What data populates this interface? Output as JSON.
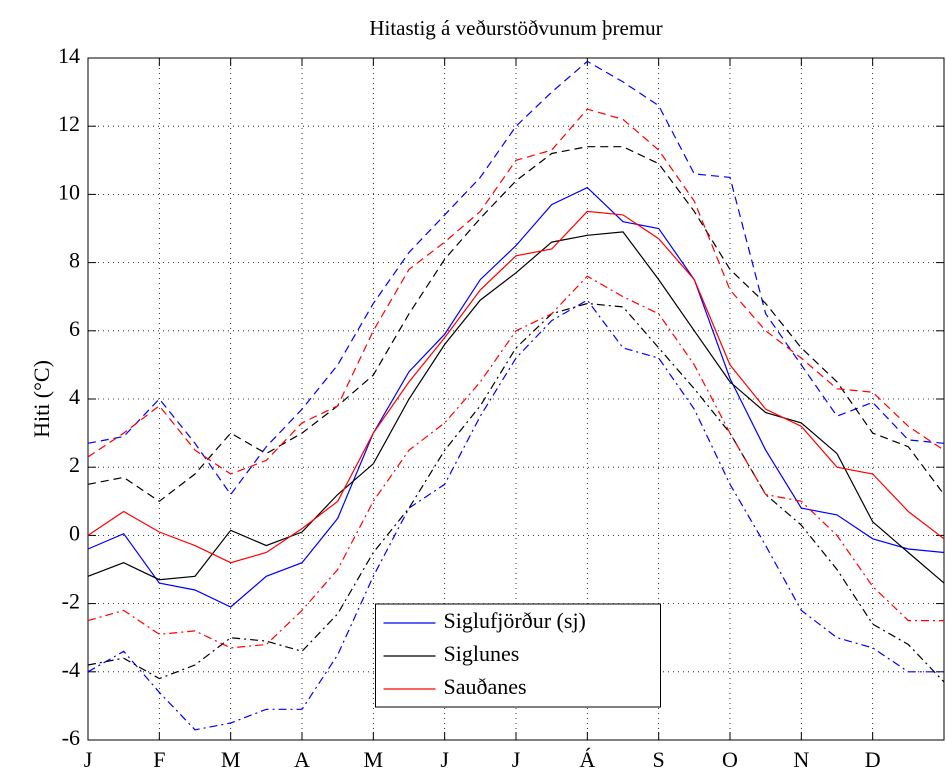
{
  "chart_data": {
    "type": "line",
    "title": "Hitastig á veðurstöðvunum þremur",
    "ylabel": "Hiti (°C)",
    "x": [
      0,
      0.5,
      1,
      1.5,
      2,
      2.5,
      3,
      3.5,
      4,
      4.5,
      5,
      5.5,
      6,
      6.5,
      7,
      7.5,
      8,
      8.5,
      9,
      9.5,
      10,
      10.5,
      11,
      11.5,
      12
    ],
    "xlim": [
      0,
      12
    ],
    "xticks": [
      {
        "value": 0,
        "label": "J"
      },
      {
        "value": 1,
        "label": "F"
      },
      {
        "value": 2,
        "label": "M"
      },
      {
        "value": 3,
        "label": "A"
      },
      {
        "value": 4,
        "label": "M"
      },
      {
        "value": 5,
        "label": "J"
      },
      {
        "value": 6,
        "label": "J"
      },
      {
        "value": 7,
        "label": "Á"
      },
      {
        "value": 8,
        "label": "S"
      },
      {
        "value": 9,
        "label": "O"
      },
      {
        "value": 10,
        "label": "N"
      },
      {
        "value": 11,
        "label": "D"
      }
    ],
    "ylim": [
      -6,
      14
    ],
    "yticks": [
      -6,
      -4,
      -2,
      0,
      2,
      4,
      6,
      8,
      10,
      12,
      14
    ],
    "grid": true,
    "legend_loc": "lower center",
    "series": [
      {
        "name": "Siglufjörður (sj)",
        "color": "#0000ff",
        "dash": "solid",
        "values": [
          -0.4,
          0.05,
          -1.4,
          -1.6,
          -2.1,
          -1.2,
          -0.8,
          0.5,
          3.0,
          4.8,
          5.9,
          7.5,
          8.5,
          9.7,
          10.2,
          9.2,
          9.0,
          7.5,
          4.6,
          2.5,
          0.8,
          0.6,
          -0.1,
          -0.4,
          -0.5
        ]
      },
      {
        "name": "Siglunes",
        "color": "#000000",
        "dash": "solid",
        "values": [
          -1.2,
          -0.8,
          -1.3,
          -1.2,
          0.15,
          -0.3,
          0.1,
          1.2,
          2.1,
          4.0,
          5.6,
          6.9,
          7.7,
          8.6,
          8.8,
          8.9,
          7.5,
          6.0,
          4.5,
          3.6,
          3.3,
          2.4,
          0.4,
          -0.5,
          -1.4
        ]
      },
      {
        "name": "Sauðanes",
        "color": "#ff0000",
        "dash": "solid",
        "values": [
          0.0,
          0.7,
          0.1,
          -0.3,
          -0.8,
          -0.5,
          0.2,
          1.0,
          3.0,
          4.5,
          5.8,
          7.2,
          8.2,
          8.4,
          9.5,
          9.4,
          8.7,
          7.5,
          5.0,
          3.7,
          3.2,
          2.0,
          1.8,
          0.7,
          -0.1
        ]
      },
      {
        "color": "#0000ff",
        "dash": "dashed",
        "values": [
          2.7,
          2.9,
          4.0,
          2.7,
          1.2,
          2.6,
          3.7,
          5.0,
          6.8,
          8.3,
          9.4,
          10.5,
          12.0,
          13.0,
          13.9,
          13.3,
          12.6,
          10.6,
          10.5,
          6.5,
          5.0,
          3.5,
          3.9,
          2.8,
          2.7
        ]
      },
      {
        "color": "#000000",
        "dash": "dashed",
        "values": [
          1.5,
          1.7,
          1.0,
          1.8,
          3.0,
          2.4,
          3.0,
          3.8,
          4.7,
          6.5,
          8.1,
          9.3,
          10.4,
          11.2,
          11.4,
          11.4,
          10.9,
          9.5,
          7.8,
          6.8,
          5.5,
          4.5,
          3.0,
          2.6,
          1.2
        ]
      },
      {
        "color": "#ff0000",
        "dash": "dashed",
        "values": [
          2.3,
          3.0,
          3.8,
          2.5,
          1.8,
          2.2,
          3.3,
          3.8,
          6.0,
          7.8,
          8.6,
          9.5,
          11.0,
          11.3,
          12.5,
          12.2,
          11.3,
          9.8,
          7.2,
          6.0,
          5.2,
          4.3,
          4.2,
          3.2,
          2.5
        ]
      },
      {
        "color": "#0000ff",
        "dash": "dashdot",
        "values": [
          -4.0,
          -3.4,
          -4.6,
          -5.7,
          -5.5,
          -5.1,
          -5.1,
          -3.5,
          -1.2,
          0.8,
          1.5,
          3.5,
          5.2,
          6.3,
          6.9,
          5.5,
          5.2,
          3.7,
          1.5,
          -0.3,
          -2.2,
          -3.0,
          -3.3,
          -4.0,
          -4.0
        ]
      },
      {
        "color": "#000000",
        "dash": "dashdot",
        "values": [
          -3.8,
          -3.6,
          -4.2,
          -3.8,
          -3.0,
          -3.1,
          -3.4,
          -2.3,
          -0.5,
          0.8,
          2.5,
          3.8,
          5.5,
          6.5,
          6.8,
          6.7,
          5.5,
          4.3,
          3.0,
          1.2,
          0.3,
          -1.0,
          -2.6,
          -3.2,
          -4.3
        ]
      },
      {
        "color": "#ff0000",
        "dash": "dashdot",
        "values": [
          -2.5,
          -2.2,
          -2.9,
          -2.8,
          -3.3,
          -3.2,
          -2.2,
          -1.0,
          1.0,
          2.5,
          3.3,
          4.5,
          6.0,
          6.5,
          7.6,
          7.0,
          6.5,
          5.0,
          3.0,
          1.2,
          1.0,
          0.0,
          -1.5,
          -2.5,
          -2.5
        ]
      }
    ]
  }
}
